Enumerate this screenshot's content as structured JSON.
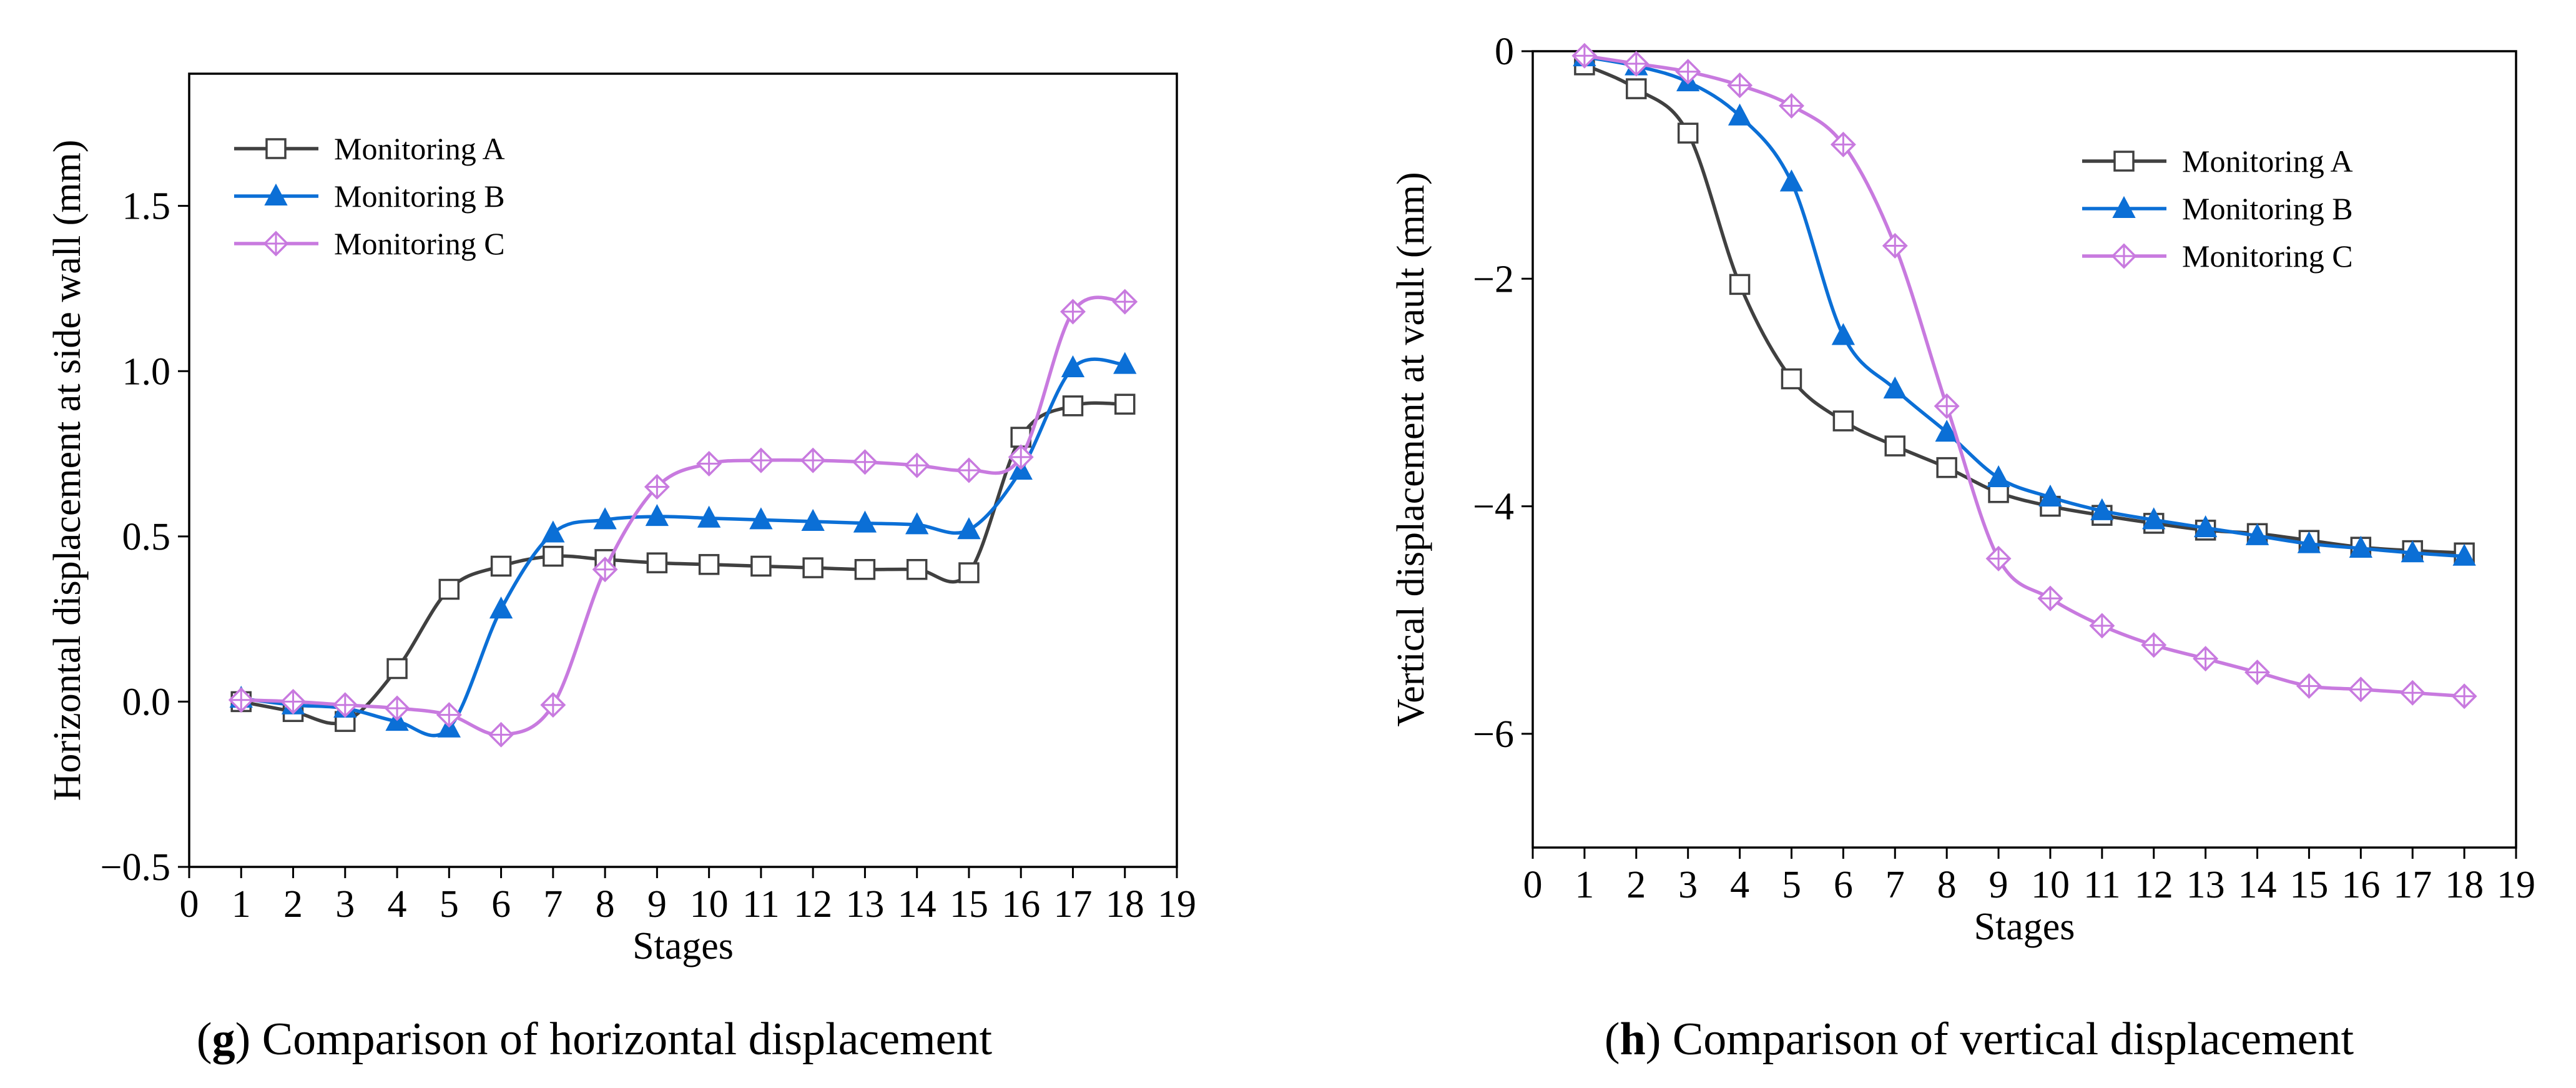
{
  "colors": {
    "monitoring_a": "#404040",
    "monitoring_b": "#0b6fd6",
    "monitoring_c": "#c87adf",
    "axis": "#000000"
  },
  "chart_data": [
    {
      "type": "line",
      "id": "g",
      "caption": {
        "letter": "g",
        "open": "(",
        "close": ")",
        "text": "Comparison of horizontal displacement"
      },
      "xlabel": "Stages",
      "ylabel": "Horizontal displacement at side wall (mm)",
      "xlim": [
        0,
        19
      ],
      "ylim": [
        -0.5,
        1.9
      ],
      "xticks": [
        0,
        1,
        2,
        3,
        4,
        5,
        6,
        7,
        8,
        9,
        10,
        11,
        12,
        13,
        14,
        15,
        16,
        17,
        18,
        19
      ],
      "yticks": [
        -0.5,
        0.0,
        0.5,
        1.0,
        1.5
      ],
      "ytick_labels": [
        "−0.5",
        "0.0",
        "0.5",
        "1.0",
        "1.5"
      ],
      "legend_position": "top-left",
      "x": [
        1,
        2,
        3,
        4,
        5,
        6,
        7,
        8,
        9,
        10,
        11,
        12,
        13,
        14,
        15,
        16,
        17,
        18
      ],
      "series": [
        {
          "name": "Monitoring A",
          "marker": "square",
          "color_key": "monitoring_a",
          "values": [
            0.0,
            -0.03,
            -0.06,
            0.1,
            0.34,
            0.41,
            0.44,
            0.43,
            0.42,
            0.415,
            0.41,
            0.405,
            0.4,
            0.4,
            0.39,
            0.8,
            0.895,
            0.9
          ]
        },
        {
          "name": "Monitoring B",
          "marker": "triangle",
          "color_key": "monitoring_b",
          "values": [
            0.01,
            -0.01,
            -0.02,
            -0.06,
            -0.08,
            0.28,
            0.51,
            0.55,
            0.56,
            0.555,
            0.55,
            0.545,
            0.54,
            0.535,
            0.52,
            0.7,
            1.01,
            1.02
          ]
        },
        {
          "name": "Monitoring C",
          "marker": "diamond-cross",
          "color_key": "monitoring_c",
          "values": [
            0.005,
            0.0,
            -0.01,
            -0.02,
            -0.04,
            -0.1,
            -0.01,
            0.4,
            0.65,
            0.72,
            0.73,
            0.73,
            0.725,
            0.715,
            0.7,
            0.74,
            1.18,
            1.21
          ]
        }
      ]
    },
    {
      "type": "line",
      "id": "h",
      "caption": {
        "letter": "h",
        "open": "(",
        "close": ")",
        "text": "Comparison of vertical displacement"
      },
      "xlabel": "Stages",
      "ylabel": "Vertical displacement at vault (mm)",
      "xlim": [
        0,
        19
      ],
      "ylim": [
        -7,
        0
      ],
      "xticks": [
        0,
        1,
        2,
        3,
        4,
        5,
        6,
        7,
        8,
        9,
        10,
        11,
        12,
        13,
        14,
        15,
        16,
        17,
        18,
        19
      ],
      "yticks": [
        -6,
        -4,
        -2,
        0
      ],
      "ytick_labels": [
        "−6",
        "−4",
        "−2",
        "0"
      ],
      "legend_position": "top-right",
      "x": [
        1,
        2,
        3,
        4,
        5,
        6,
        7,
        8,
        9,
        10,
        11,
        12,
        13,
        14,
        15,
        16,
        17,
        18
      ],
      "series": [
        {
          "name": "Monitoring A",
          "marker": "square",
          "color_key": "monitoring_a",
          "values": [
            -0.12,
            -0.33,
            -0.72,
            -2.05,
            -2.88,
            -3.25,
            -3.47,
            -3.66,
            -3.88,
            -4.0,
            -4.08,
            -4.15,
            -4.21,
            -4.24,
            -4.3,
            -4.36,
            -4.39,
            -4.41
          ]
        },
        {
          "name": "Monitoring B",
          "marker": "triangle",
          "color_key": "monitoring_b",
          "values": [
            -0.05,
            -0.13,
            -0.27,
            -0.57,
            -1.15,
            -2.5,
            -2.97,
            -3.35,
            -3.75,
            -3.92,
            -4.04,
            -4.12,
            -4.19,
            -4.26,
            -4.33,
            -4.37,
            -4.41,
            -4.44
          ]
        },
        {
          "name": "Monitoring C",
          "marker": "diamond-cross",
          "color_key": "monitoring_c",
          "values": [
            -0.04,
            -0.11,
            -0.18,
            -0.3,
            -0.48,
            -0.82,
            -1.71,
            -3.12,
            -4.46,
            -4.81,
            -5.05,
            -5.22,
            -5.34,
            -5.46,
            -5.58,
            -5.61,
            -5.64,
            -5.67
          ]
        }
      ]
    }
  ]
}
